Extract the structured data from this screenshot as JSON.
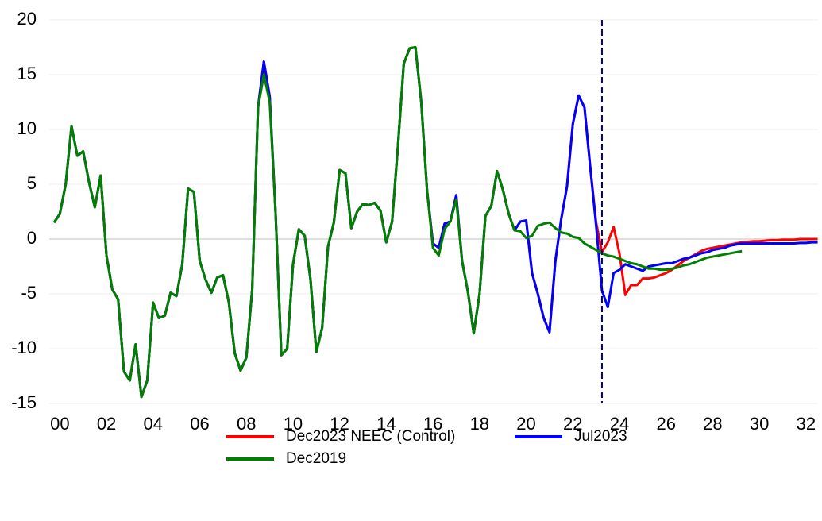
{
  "chart_data": {
    "type": "line",
    "categories": [
      null,
      "00",
      null,
      null,
      null,
      null,
      null,
      null,
      null,
      "02",
      null,
      null,
      null,
      null,
      null,
      null,
      null,
      "04",
      null,
      null,
      null,
      null,
      null,
      null,
      null,
      "06",
      null,
      null,
      null,
      null,
      null,
      null,
      null,
      "08",
      null,
      null,
      null,
      null,
      null,
      null,
      null,
      "10",
      null,
      null,
      null,
      null,
      null,
      null,
      null,
      "12",
      null,
      null,
      null,
      null,
      null,
      null,
      null,
      "14",
      null,
      null,
      null,
      null,
      null,
      null,
      null,
      "16",
      null,
      null,
      null,
      null,
      null,
      null,
      null,
      "18",
      null,
      null,
      null,
      null,
      null,
      null,
      null,
      "20",
      null,
      null,
      null,
      null,
      null,
      null,
      null,
      "22",
      null,
      null,
      null,
      null,
      null,
      null,
      null,
      "24",
      null,
      null,
      null,
      null,
      null,
      null,
      null,
      "26",
      null,
      null,
      null,
      null,
      null,
      null,
      null,
      "28",
      null,
      null,
      null,
      null,
      null,
      null,
      null,
      "30",
      null,
      null,
      null,
      null,
      null,
      null,
      null,
      "32",
      null,
      null
    ],
    "series": [
      {
        "name": "Dec2023 NEEC (Control)",
        "color": "#ff0000",
        "values": [
          1.5,
          2.3,
          5,
          10.3,
          7.6,
          8,
          5.2,
          2.9,
          5.8,
          -1.5,
          -4.6,
          -5.5,
          -12.1,
          -12.9,
          -9.6,
          -14.4,
          -12.9,
          -5.8,
          -7.2,
          -7,
          -4.9,
          -5.2,
          -2.3,
          4.6,
          4.3,
          -2,
          -3.7,
          -4.9,
          -3.5,
          -3.3,
          -5.8,
          -10.4,
          -12,
          -10.8,
          -4.6,
          12,
          16.2,
          13,
          2.5,
          -10.6,
          -10,
          -2.3,
          0.9,
          0.3,
          -3.7,
          -10.3,
          -8.1,
          -0.7,
          1.5,
          6.3,
          6,
          1,
          2.5,
          3.2,
          3.1,
          3.3,
          2.6,
          -0.3,
          1.6,
          8.5,
          16,
          17.4,
          17.5,
          12.5,
          4.4,
          -0.4,
          -0.8,
          1.4,
          1.6,
          4,
          -2,
          -4.8,
          -8.6,
          -5,
          2.1,
          3,
          6.2,
          4.5,
          2.3,
          0.8,
          1.6,
          1.7,
          -3.1,
          -5,
          -7.2,
          -8.5,
          -2,
          1.8,
          4.8,
          10.5,
          13.1,
          12,
          6.5,
          1.5,
          -1.2,
          -0.3,
          1.1,
          -1.3,
          -5.1,
          -4.2,
          -4.2,
          -3.6,
          -3.6,
          -3.5,
          -3.3,
          -3.1,
          -2.8,
          -2.4,
          -2,
          -1.7,
          -1.4,
          -1.1,
          -0.9,
          -0.8,
          -0.7,
          -0.6,
          -0.5,
          -0.4,
          -0.3,
          -0.25,
          -0.2,
          -0.2,
          -0.15,
          -0.1,
          -0.1,
          -0.05,
          -0.05,
          -0.05,
          0,
          0,
          0,
          0
        ]
      },
      {
        "name": "Jul2023",
        "color": "#0000ff",
        "values": [
          1.5,
          2.3,
          5,
          10.3,
          7.6,
          8,
          5.2,
          2.9,
          5.8,
          -1.5,
          -4.6,
          -5.5,
          -12.1,
          -12.9,
          -9.6,
          -14.4,
          -12.9,
          -5.8,
          -7.2,
          -7,
          -4.9,
          -5.2,
          -2.3,
          4.6,
          4.3,
          -2,
          -3.7,
          -4.9,
          -3.5,
          -3.3,
          -5.8,
          -10.4,
          -12,
          -10.8,
          -4.6,
          12,
          16.2,
          13,
          2.5,
          -10.6,
          -10,
          -2.3,
          0.9,
          0.3,
          -3.7,
          -10.3,
          -8.1,
          -0.7,
          1.5,
          6.3,
          6,
          1,
          2.5,
          3.2,
          3.1,
          3.3,
          2.6,
          -0.3,
          1.6,
          8.5,
          16,
          17.4,
          17.5,
          12.5,
          4.4,
          -0.4,
          -0.8,
          1.4,
          1.6,
          4,
          -2,
          -4.8,
          -8.6,
          -5,
          2.1,
          3,
          6.2,
          4.5,
          2.3,
          0.8,
          1.6,
          1.7,
          -3.1,
          -5,
          -7.2,
          -8.5,
          -2,
          1.8,
          4.8,
          10.5,
          13.1,
          12,
          6.5,
          1.2,
          -4.7,
          -6.2,
          -3.1,
          -2.8,
          -2.3,
          -2.5,
          -2.7,
          -2.9,
          -2.5,
          -2.4,
          -2.3,
          -2.2,
          -2.2,
          -2,
          -1.8,
          -1.7,
          -1.5,
          -1.3,
          -1.2,
          -1,
          -0.9,
          -0.8,
          -0.6,
          -0.5,
          -0.4,
          -0.4,
          -0.4,
          -0.4,
          -0.4,
          -0.4,
          -0.4,
          -0.4,
          -0.4,
          -0.4,
          -0.35,
          -0.35,
          -0.3,
          -0.3
        ]
      },
      {
        "name": "Dec2019",
        "color": "#008000",
        "values": [
          1.5,
          2.3,
          5,
          10.3,
          7.6,
          8,
          5.2,
          2.9,
          5.8,
          -1.5,
          -4.6,
          -5.5,
          -12.1,
          -12.9,
          -9.6,
          -14.4,
          -12.9,
          -5.8,
          -7.2,
          -7,
          -4.9,
          -5.2,
          -2.3,
          4.6,
          4.3,
          -2,
          -3.7,
          -4.9,
          -3.5,
          -3.3,
          -5.8,
          -10.4,
          -12,
          -10.8,
          -4.6,
          12,
          15,
          12.5,
          2.5,
          -10.6,
          -10,
          -2.3,
          0.9,
          0.3,
          -3.7,
          -10.3,
          -8.1,
          -0.7,
          1.5,
          6.3,
          6,
          1,
          2.5,
          3.2,
          3.1,
          3.3,
          2.6,
          -0.3,
          1.6,
          8.5,
          16,
          17.4,
          17.5,
          12.5,
          4.4,
          -0.8,
          -1.5,
          0.9,
          1.6,
          3.6,
          -2,
          -4.8,
          -8.6,
          -5,
          2.1,
          3,
          6.2,
          4.5,
          2.3,
          0.8,
          0.7,
          0.1,
          0.3,
          1.2,
          1.4,
          1.5,
          1,
          0.6,
          0.5,
          0.2,
          0.1,
          -0.4,
          -0.7,
          -1,
          -1.3,
          -1.5,
          -1.6,
          -1.8,
          -2,
          -2.2,
          -2.3,
          -2.5,
          -2.7,
          -2.7,
          -2.8,
          -2.8,
          -2.7,
          -2.6,
          -2.4,
          -2.3,
          -2.1,
          -1.9,
          -1.7,
          -1.6,
          -1.5,
          -1.4,
          -1.3,
          -1.2,
          -1.1,
          null,
          null,
          null,
          null,
          null,
          null,
          null,
          null,
          null,
          null,
          null,
          null,
          null
        ]
      }
    ],
    "ylim": [
      -15,
      20
    ],
    "yticks": [
      -15,
      -10,
      -5,
      0,
      5,
      10,
      15,
      20
    ],
    "grid": true,
    "vline": 94,
    "legend": "bottom"
  }
}
